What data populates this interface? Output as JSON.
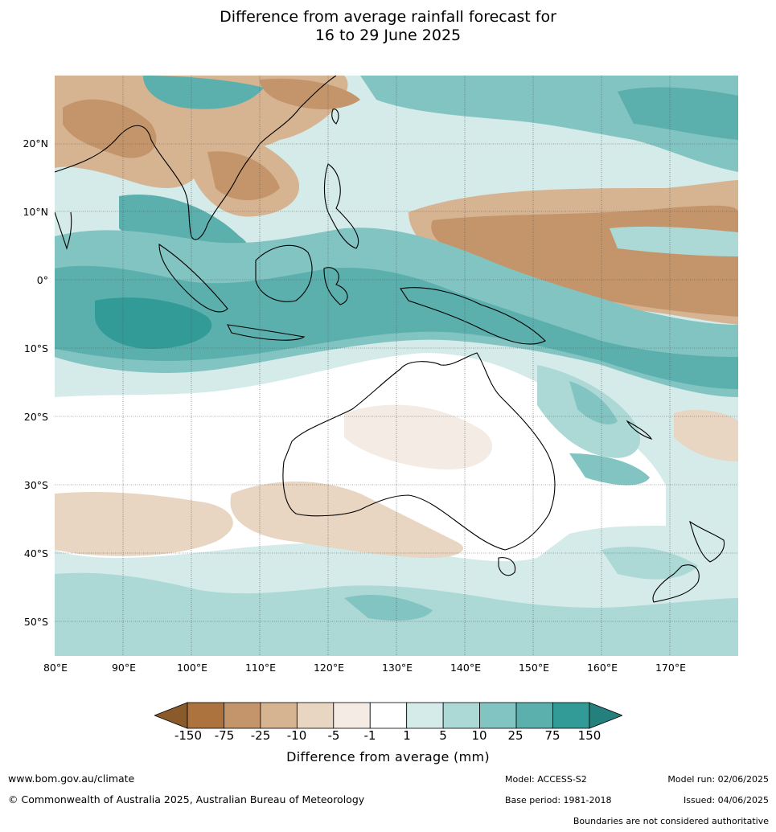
{
  "title": {
    "line1": "Difference from average rainfall forecast for",
    "line2": "16 to 29 June 2025"
  },
  "map": {
    "region": "Australia, Maritime Continent and western Pacific",
    "lat_labels": [
      "20°N",
      "10°N",
      "0°",
      "10°S",
      "20°S",
      "30°S",
      "40°S",
      "50°S"
    ],
    "lon_labels": [
      "80°E",
      "90°E",
      "100°E",
      "110°E",
      "120°E",
      "130°E",
      "140°E",
      "150°E",
      "160°E",
      "170°E"
    ]
  },
  "legend": {
    "title": "Difference from average (mm)",
    "ticks": [
      "-150",
      "-75",
      "-25",
      "-10",
      "-5",
      "-1",
      "1",
      "5",
      "10",
      "25",
      "75",
      "150"
    ],
    "colors": [
      "#8a5a2b",
      "#ad733e",
      "#c4956a",
      "#d6b492",
      "#e8d5c2",
      "#f4ebe4",
      "#ffffff",
      "#d4ebe9",
      "#acd8d6",
      "#82c4c2",
      "#5bb0ad",
      "#329b97",
      "#24807c"
    ]
  },
  "footer": {
    "url": "www.bom.gov.au/climate",
    "copyright": "© Commonwealth of Australia 2025, Australian Bureau of Meteorology",
    "model": "Model: ACCESS-S2",
    "base_period": "Base period: 1981-2018",
    "model_run": "Model run: 02/06/2025",
    "issued": "Issued: 04/06/2025",
    "disclaimer": "Boundaries are not considered authoritative"
  }
}
